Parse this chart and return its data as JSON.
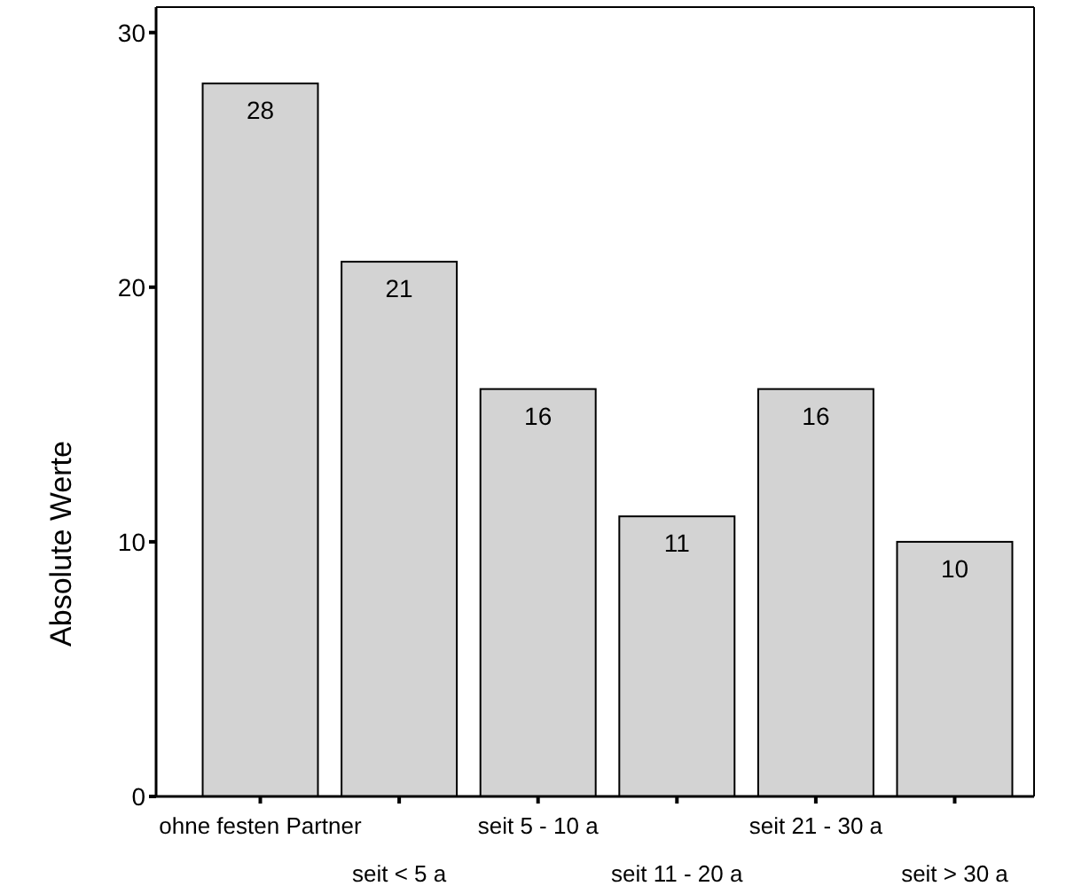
{
  "chart_data": {
    "type": "bar",
    "ylabel": "Absolute Werte",
    "categories": [
      "ohne festen Partner",
      "seit < 5 a",
      "seit 5 - 10 a",
      "seit 11 - 20 a",
      "seit 21 - 30 a",
      "seit > 30 a"
    ],
    "values": [
      28,
      21,
      16,
      11,
      16,
      10
    ],
    "color": "#d3d3d3",
    "ylim": [
      0,
      31
    ],
    "yticks": [
      0,
      10,
      20,
      30
    ],
    "data_labels": true,
    "grid": false
  }
}
